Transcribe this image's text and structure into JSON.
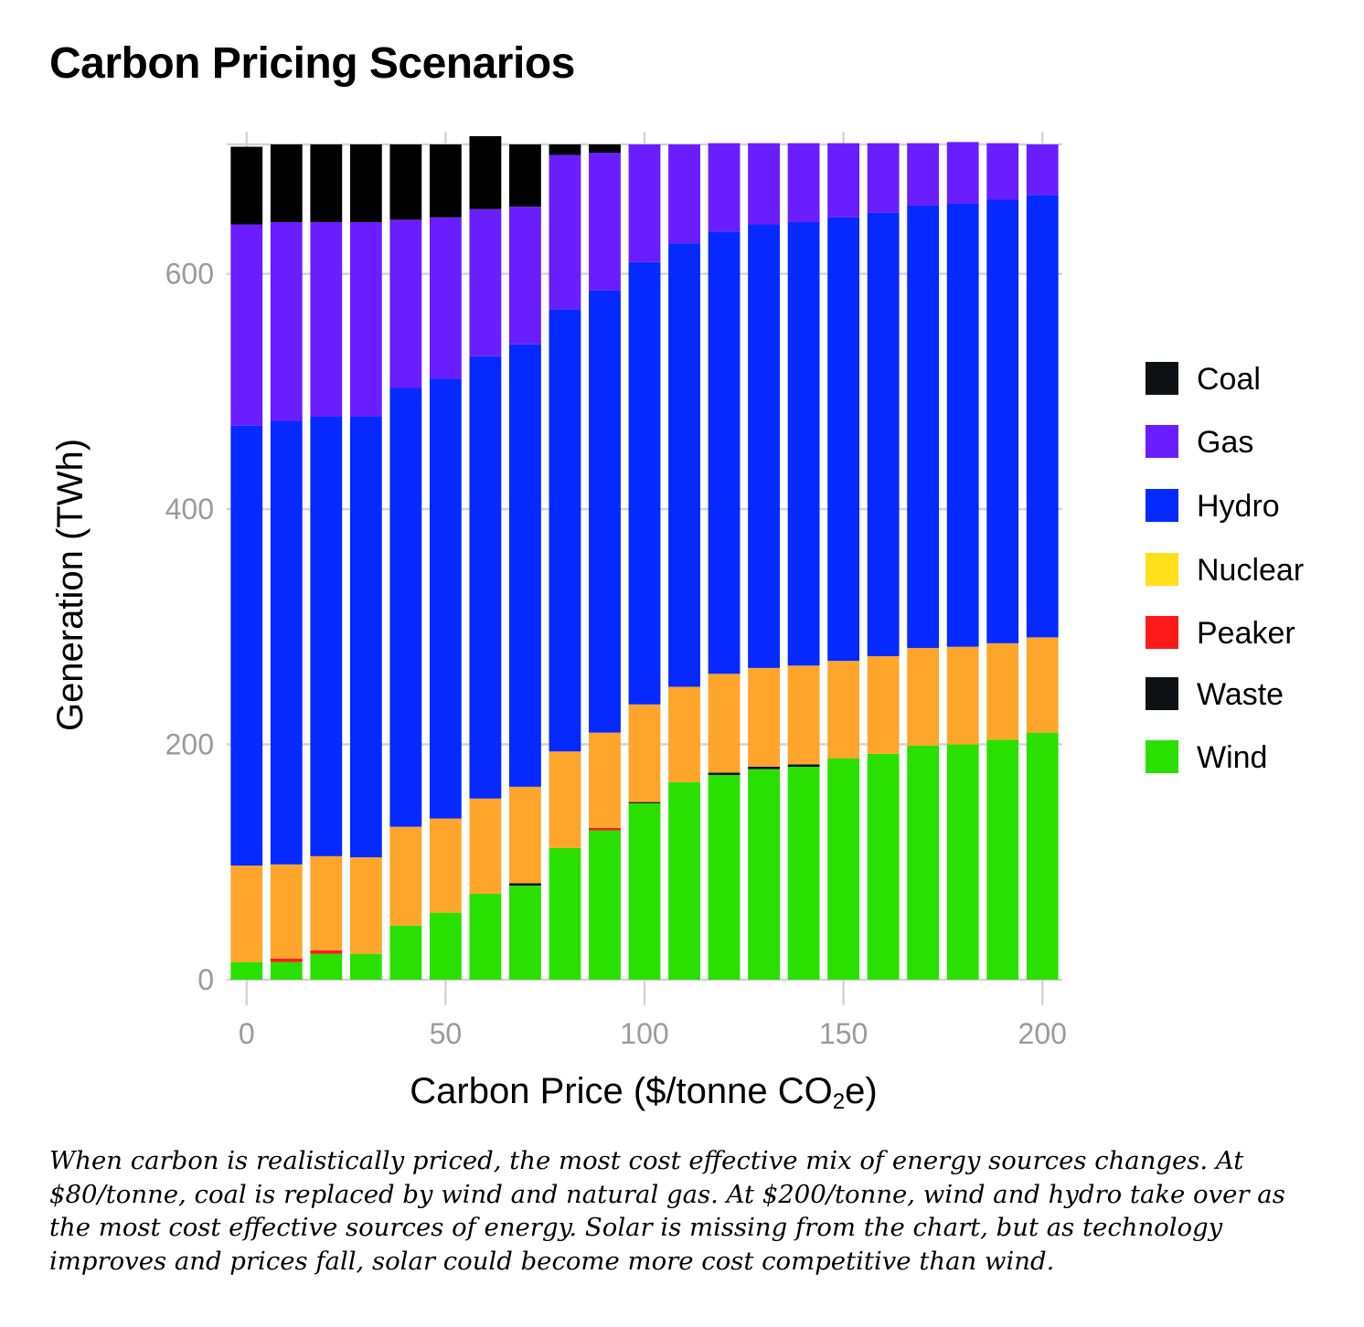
{
  "title": "Carbon Pricing Scenarios",
  "caption": "When carbon is realistically priced, the most cost effective mix of energy sources changes. At $80/tonne, coal is replaced by wind and natural gas. At $200/tonne, wind and hydro take over as the most cost effective sources of energy. Solar is missing from the chart, but as technology improves and prices fall, solar could become more cost competitive than wind.",
  "chart_data": {
    "type": "bar",
    "stacked": true,
    "xlabel_main": "Carbon Price ($/tonne CO",
    "xlabel_sub": "2",
    "xlabel_end": "e)",
    "ylabel": "Generation (TWh)",
    "xlim": [
      -5,
      205
    ],
    "ylim": [
      0,
      710
    ],
    "x_ticks": [
      0,
      50,
      100,
      150,
      200
    ],
    "y_ticks": [
      0,
      200,
      400,
      600
    ],
    "grid": true,
    "legend_position": "right",
    "x": [
      0,
      10,
      20,
      30,
      40,
      50,
      60,
      70,
      80,
      90,
      100,
      110,
      120,
      130,
      140,
      150,
      160,
      170,
      180,
      190,
      200
    ],
    "series": [
      {
        "name": "Wind",
        "color": "#2ae000",
        "values": [
          15,
          15,
          22,
          22,
          46,
          57,
          73,
          80,
          112,
          127,
          150,
          168,
          174,
          179,
          181,
          188,
          192,
          199,
          200,
          204,
          210
        ]
      },
      {
        "name": "Waste",
        "color": "#0d1114",
        "values": [
          0,
          0,
          0,
          0,
          0,
          0,
          0,
          2,
          0,
          0,
          1,
          0,
          2,
          2,
          2,
          0,
          0,
          0,
          0,
          0,
          0
        ]
      },
      {
        "name": "Peaker",
        "color": "#ff1a1a",
        "values": [
          0,
          3,
          3,
          0,
          0,
          0,
          0,
          0,
          0,
          2,
          0,
          0,
          0,
          0,
          0,
          0,
          0,
          0,
          0,
          0,
          0
        ]
      },
      {
        "name": "Nuclear",
        "color": "#ffa52b",
        "values": [
          82,
          80,
          80,
          82,
          84,
          80,
          81,
          82,
          82,
          81,
          83,
          81,
          84,
          84,
          84,
          83,
          83,
          83,
          83,
          82,
          81
        ]
      },
      {
        "name": "Hydro",
        "color": "#0629ff",
        "values": [
          374,
          377,
          374,
          375,
          373,
          374,
          376,
          376,
          376,
          376,
          376,
          377,
          376,
          377,
          377,
          377,
          377,
          376,
          377,
          377,
          376
        ]
      },
      {
        "name": "Gas",
        "color": "#6a1dff",
        "values": [
          171,
          169,
          165,
          165,
          143,
          137,
          125,
          117,
          131,
          117,
          100,
          84,
          75,
          69,
          67,
          63,
          59,
          53,
          52,
          48,
          43
        ]
      },
      {
        "name": "Coal",
        "color": "#000000",
        "values": [
          66,
          66,
          66,
          66,
          64,
          62,
          62,
          53,
          9,
          7,
          0,
          0,
          0,
          0,
          0,
          0,
          0,
          0,
          0,
          0,
          0
        ]
      }
    ],
    "legend": [
      {
        "name": "Coal",
        "color": "#0d1114"
      },
      {
        "name": "Gas",
        "color": "#6a1dff"
      },
      {
        "name": "Hydro",
        "color": "#0629ff"
      },
      {
        "name": "Nuclear",
        "color": "#ffe01a"
      },
      {
        "name": "Peaker",
        "color": "#ff1a1a"
      },
      {
        "name": "Waste",
        "color": "#0d1114"
      },
      {
        "name": "Wind",
        "color": "#2ae000"
      }
    ]
  }
}
